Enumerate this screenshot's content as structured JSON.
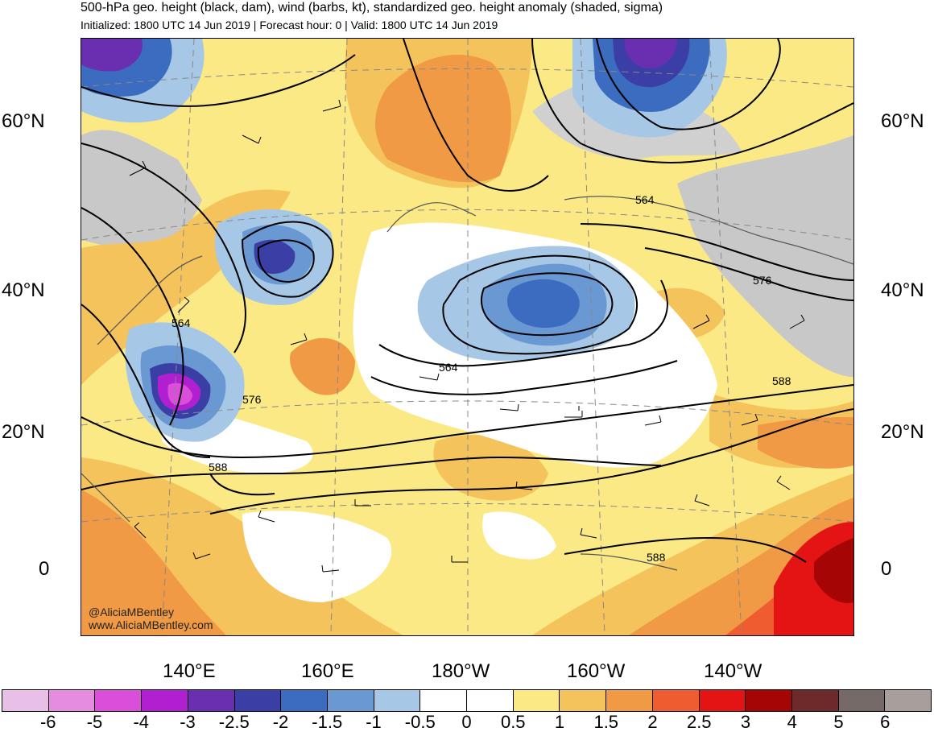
{
  "header": {
    "title": "500-hPa geo. height (black, dam), wind (barbs, kt), standardized geo. height anomaly (shaded, sigma)",
    "subtitle": "Initialized: 1800 UTC 14 Jun 2019 | Forecast hour: 0 | Valid: 1800 UTC 14 Jun 2019"
  },
  "map": {
    "lat_labels_left": [
      "60°N",
      "40°N",
      "20°N",
      "0"
    ],
    "lat_labels_right": [
      "60°N",
      "40°N",
      "20°N",
      "0"
    ],
    "lon_labels": [
      "140°E",
      "160°E",
      "180°W",
      "160°W",
      "140°W"
    ],
    "contour_labels": [
      "564",
      "576",
      "564",
      "576",
      "564",
      "588",
      "588",
      "588"
    ],
    "credit_handle": "@AliciaMBentley",
    "credit_site": "www.AliciaMBentley.com"
  },
  "legend": {
    "labels": [
      "-6",
      "-5",
      "-4",
      "-3",
      "-2.5",
      "-2",
      "-1.5",
      "-1",
      "-0.5",
      "0",
      "0.5",
      "1",
      "1.5",
      "2",
      "2.5",
      "3",
      "4",
      "5",
      "6"
    ],
    "colors": [
      "#e8bfe6",
      "#e58be0",
      "#d94fd9",
      "#b020d0",
      "#6a2fb0",
      "#3b3fa5",
      "#3b6cc0",
      "#6a98d2",
      "#a6c8e6",
      "#ffffff",
      "#ffffff",
      "#fbe985",
      "#f5c35c",
      "#f09a45",
      "#ee5c30",
      "#e51414",
      "#a50505",
      "#6e2a2a",
      "#766a68",
      "#a89e9c"
    ]
  }
}
